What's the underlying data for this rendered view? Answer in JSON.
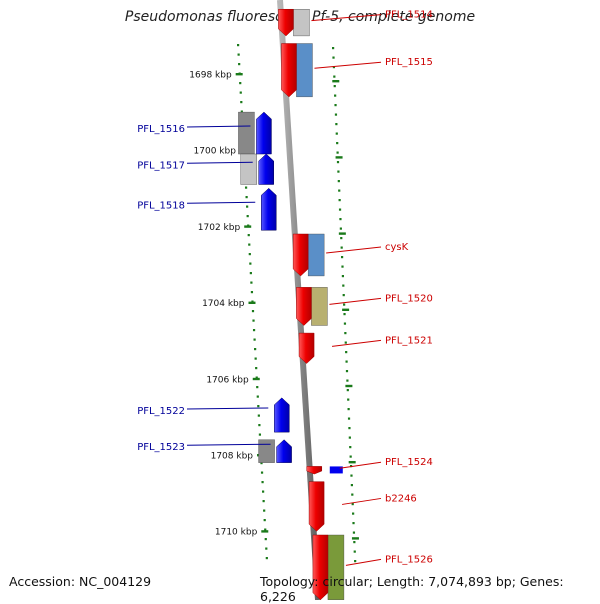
{
  "title": "Pseudomonas fluorescens Pf-5, complete genome",
  "footer": {
    "accession": "Accession: NC_004129",
    "topology": "Topology: circular; Length: 7,074,893 bp; Genes: 6,226"
  },
  "colors": {
    "forward_label": "#cc0000",
    "reverse_label": "#000099",
    "forward_gene": "#ee0000",
    "reverse_gene": "#0000ee",
    "backbone": "#8a8a8a",
    "tick": "#1a7a1a",
    "feature_blue": "#5a8fc8",
    "feature_olive": "#b8b070",
    "feature_gray": "#888888",
    "feature_lightgray": "#c4c4c4",
    "feature_green": "#7a9a3a"
  },
  "scale": {
    "unit": "kbp",
    "ticks": [
      {
        "label": "1698 kbp",
        "kbp": 1698
      },
      {
        "label": "1700 kbp",
        "kbp": 1700
      },
      {
        "label": "1702 kbp",
        "kbp": 1702
      },
      {
        "label": "1704 kbp",
        "kbp": 1704
      },
      {
        "label": "1706 kbp",
        "kbp": 1706
      },
      {
        "label": "1708 kbp",
        "kbp": 1708
      },
      {
        "label": "1710 kbp",
        "kbp": 1710
      }
    ]
  },
  "genes": [
    {
      "name": "PFL_1514",
      "strand": "+",
      "kbp_start": 1696.3,
      "kbp_end": 1697.0,
      "feature": "feature_lightgray"
    },
    {
      "name": "PFL_1515",
      "strand": "+",
      "kbp_start": 1697.2,
      "kbp_end": 1698.6,
      "feature": "feature_blue"
    },
    {
      "name": "PFL_1516",
      "strand": "-",
      "kbp_start": 1699.0,
      "kbp_end": 1700.1,
      "feature": "feature_gray"
    },
    {
      "name": "PFL_1517",
      "strand": "-",
      "kbp_start": 1700.1,
      "kbp_end": 1700.9,
      "feature": "feature_lightgray"
    },
    {
      "name": "PFL_1518",
      "strand": "-",
      "kbp_start": 1701.0,
      "kbp_end": 1702.1,
      "feature": null
    },
    {
      "name": "cysK",
      "strand": "+",
      "kbp_start": 1702.2,
      "kbp_end": 1703.3,
      "feature": "feature_blue"
    },
    {
      "name": "PFL_1520",
      "strand": "+",
      "kbp_start": 1703.6,
      "kbp_end": 1704.6,
      "feature": "feature_olive"
    },
    {
      "name": "PFL_1521",
      "strand": "+",
      "kbp_start": 1704.8,
      "kbp_end": 1705.6,
      "feature": null
    },
    {
      "name": "PFL_1522",
      "strand": "-",
      "kbp_start": 1706.5,
      "kbp_end": 1707.4,
      "feature": null
    },
    {
      "name": "PFL_1523",
      "strand": "-",
      "kbp_start": 1707.6,
      "kbp_end": 1708.2,
      "feature": "feature_gray"
    },
    {
      "name": "PFL_1524",
      "strand": "+",
      "kbp_start": 1708.3,
      "kbp_end": 1708.5,
      "feature": "feature_small_blue"
    },
    {
      "name": "b2246",
      "strand": "+",
      "kbp_start": 1708.7,
      "kbp_end": 1710.0,
      "feature": null
    },
    {
      "name": "PFL_1526",
      "strand": "+",
      "kbp_start": 1710.1,
      "kbp_end": 1711.8,
      "feature": "feature_green"
    }
  ]
}
